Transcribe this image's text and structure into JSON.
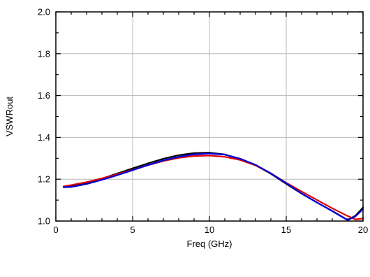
{
  "chart_data": {
    "type": "line",
    "title": "",
    "xlabel": "Freq (GHz)",
    "ylabel": "VSWRout",
    "xlim": [
      0,
      20
    ],
    "ylim": [
      1.0,
      2.0
    ],
    "grid": true,
    "xticks": [
      0,
      5,
      10,
      15,
      20
    ],
    "xtick_labels": [
      "0",
      "5",
      "10",
      "15",
      "20"
    ],
    "yticks": [
      1.0,
      1.2,
      1.4,
      1.6,
      1.8,
      2.0
    ],
    "ytick_labels": [
      "1.0",
      "1.2",
      "1.4",
      "1.6",
      "1.8",
      "2.0"
    ],
    "series": [
      {
        "color": "#000000",
        "x": [
          0.5,
          1,
          2,
          3,
          4,
          5,
          6,
          7,
          8,
          9,
          10,
          11,
          12,
          13,
          14,
          15,
          16,
          17,
          18,
          19,
          19.5,
          20
        ],
        "y": [
          1.165,
          1.168,
          1.183,
          1.203,
          1.227,
          1.252,
          1.276,
          1.298,
          1.315,
          1.325,
          1.327,
          1.318,
          1.298,
          1.267,
          1.226,
          1.178,
          1.131,
          1.089,
          1.048,
          1.005,
          1.025,
          1.065
        ]
      },
      {
        "color": "#e00000",
        "x": [
          0.5,
          1,
          2,
          3,
          4,
          5,
          6,
          7,
          8,
          9,
          10,
          11,
          12,
          13,
          14,
          15,
          16,
          17,
          18,
          19,
          19.5,
          20
        ],
        "y": [
          1.166,
          1.172,
          1.186,
          1.204,
          1.224,
          1.245,
          1.267,
          1.287,
          1.302,
          1.311,
          1.313,
          1.307,
          1.292,
          1.266,
          1.228,
          1.183,
          1.141,
          1.101,
          1.061,
          1.024,
          1.008,
          1.012
        ]
      },
      {
        "color": "#0000dd",
        "x": [
          0.5,
          1,
          2,
          3,
          4,
          5,
          6,
          7,
          8,
          9,
          10,
          11,
          12,
          13,
          14,
          15,
          16,
          17,
          18,
          19,
          19.5,
          20
        ],
        "y": [
          1.162,
          1.163,
          1.177,
          1.197,
          1.219,
          1.243,
          1.268,
          1.29,
          1.307,
          1.319,
          1.323,
          1.317,
          1.298,
          1.269,
          1.228,
          1.181,
          1.132,
          1.089,
          1.047,
          1.004,
          1.022,
          1.057
        ]
      }
    ]
  }
}
